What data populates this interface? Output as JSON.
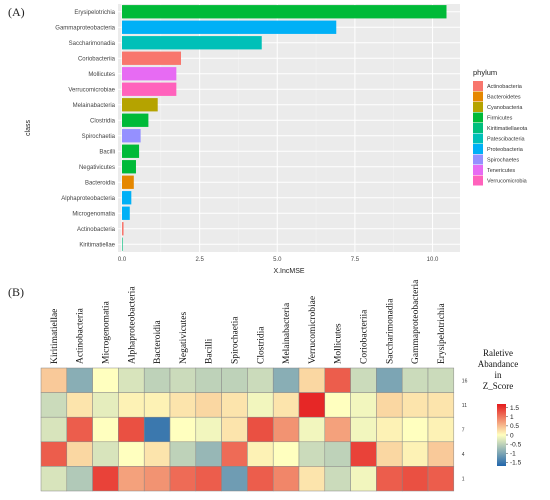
{
  "panel_a_label": "(A)",
  "panel_b_label": "(B)",
  "chart_data": [
    {
      "type": "bar",
      "orientation": "horizontal",
      "xlabel": "X.IncMSE",
      "ylabel": "class",
      "xlim": [
        0,
        10.5
      ],
      "xticks": [
        "0.0",
        "2.5",
        "5.0",
        "7.5",
        "10.0"
      ],
      "xtick_values": [
        0,
        2.5,
        5,
        7.5,
        10
      ],
      "grid": true,
      "legend_title": "phylum",
      "legend_position": "right",
      "legend": [
        {
          "name": "Actinobacteria",
          "color": "#F8766D"
        },
        {
          "name": "Bacteroidetes",
          "color": "#E58700"
        },
        {
          "name": "Cyanobacteria",
          "color": "#B5A300"
        },
        {
          "name": "Firmicutes",
          "color": "#00BA38"
        },
        {
          "name": "Kiritimatiellaeota",
          "color": "#00BF7D"
        },
        {
          "name": "Patescibacteria",
          "color": "#00C0B8"
        },
        {
          "name": "Proteobacteria",
          "color": "#00B0F6"
        },
        {
          "name": "Spirochaetes",
          "color": "#9590FF"
        },
        {
          "name": "Tenericutes",
          "color": "#E76BF3"
        },
        {
          "name": "Verrucomicrobia",
          "color": "#FF62BC"
        }
      ],
      "categories": [
        "Erysipelotrichia",
        "Gammaproteobacteria",
        "Saccharimonadia",
        "Coriobacteriia",
        "Mollicutes",
        "Verrucomicrobiae",
        "Melainabacteria",
        "Clostridia",
        "Spirochaetia",
        "Bacilli",
        "Negativicutes",
        "Bacteroidia",
        "Alphaproteobacteria",
        "Microgenomatia",
        "Actinobacteria",
        "Kiritimatiellae"
      ],
      "values": [
        10.45,
        6.9,
        4.5,
        1.9,
        1.75,
        1.75,
        1.15,
        0.85,
        0.6,
        0.55,
        0.45,
        0.38,
        0.3,
        0.25,
        0.05,
        0.02
      ],
      "phylum": [
        "Firmicutes",
        "Proteobacteria",
        "Patescibacteria",
        "Actinobacteria",
        "Tenericutes",
        "Verrucomicrobia",
        "Cyanobacteria",
        "Firmicutes",
        "Spirochaetes",
        "Firmicutes",
        "Firmicutes",
        "Bacteroidetes",
        "Proteobacteria",
        "Proteobacteria",
        "Actinobacteria",
        "Kiritimatiellaeota"
      ]
    },
    {
      "type": "heatmap",
      "columns": [
        "Kiritimatiellae",
        "Actinobacteria",
        "Microgenomatia",
        "Alphaproteobacteria",
        "Bacteroidia",
        "Negativicutes",
        "Bacilli",
        "Spirochaetia",
        "Clostridia",
        "Melainabacteria",
        "Verrucomicrobiae",
        "Mollicutes",
        "Coriobacteriia",
        "Saccharimonadia",
        "Gammaproteobacteria",
        "Erysipelotrichia"
      ],
      "rows": [
        "16",
        "11",
        "7",
        "4",
        "1"
      ],
      "values": [
        [
          0.4,
          -0.9,
          0.0,
          -0.3,
          -0.5,
          -0.4,
          -0.5,
          -0.5,
          -0.4,
          -0.9,
          0.3,
          1.2,
          -0.4,
          -1.0,
          -0.4,
          -0.4
        ],
        [
          -0.4,
          0.2,
          -0.2,
          0.1,
          0.1,
          0.2,
          0.3,
          0.2,
          -0.1,
          0.2,
          1.6,
          0.0,
          -0.1,
          0.3,
          0.2,
          0.2
        ],
        [
          -0.3,
          1.2,
          0.0,
          1.3,
          -1.5,
          0.0,
          -0.1,
          0.2,
          1.3,
          0.8,
          -0.1,
          0.7,
          -0.1,
          0.1,
          0.0,
          0.1
        ],
        [
          1.2,
          0.3,
          -0.3,
          0.0,
          0.2,
          -0.5,
          -0.8,
          1.1,
          0.1,
          0.0,
          -0.4,
          -0.5,
          1.4,
          0.3,
          0.1,
          0.4
        ],
        [
          -0.3,
          -0.6,
          1.4,
          0.7,
          0.8,
          1.1,
          1.2,
          -1.1,
          1.2,
          0.9,
          0.2,
          -0.4,
          -0.1,
          1.2,
          1.3,
          1.2
        ]
      ],
      "colorbar_title": [
        "Raletive",
        "Abandance",
        "in",
        "Z_Score"
      ],
      "colorbar_ticks": [
        "1.5",
        "1",
        "0.5",
        "0",
        "-0.5",
        "-1",
        "-1.5"
      ],
      "colorbar_tick_values": [
        1.5,
        1,
        0.5,
        0,
        -0.5,
        -1,
        -1.5
      ],
      "colorbar_range": [
        -1.7,
        1.7
      ],
      "colors": {
        "low": "#2166AC",
        "mid": "#FFFFBF",
        "high": "#E41A1C"
      }
    }
  ]
}
